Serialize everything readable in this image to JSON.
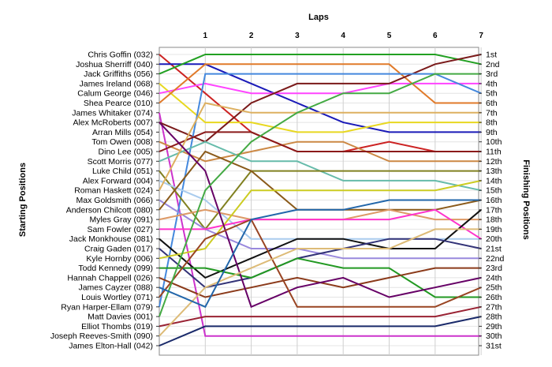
{
  "chart_data": {
    "type": "line",
    "title": "Laps",
    "ylabel_left": "Starting Positions",
    "ylabel_right": "Finishing Positions",
    "x": [
      0,
      1,
      2,
      3,
      4,
      5,
      6,
      7
    ],
    "x_tick_labels": [
      "1",
      "2",
      "3",
      "4",
      "5",
      "6",
      "7"
    ],
    "ylim": [
      1,
      31
    ],
    "y_inverted": true,
    "grid": true,
    "start_labels": [
      "Chris Goffin (032)",
      "Joshua Sherriff (040)",
      "Jack Griffiths (056)",
      "James Ireland (068)",
      "Calum George (046)",
      "Shea Pearce (010)",
      "James Whitaker (074)",
      "Alex McRoberts (007)",
      "Arran Mills (054)",
      "Tom Owen (008)",
      "Dino Lee (005)",
      "Scott Morris (077)",
      "Luke Child (051)",
      "Alex Forward (004)",
      "Roman Haskett (024)",
      "Max Goldsmith (066)",
      "Anderson Chilcott (080)",
      "Myles Gray (091)",
      "Sam Fowler (027)",
      "Jack Monkhouse (081)",
      "Craig Gaden (017)",
      "Kyle Hornby (006)",
      "Todd Kennedy (099)",
      "Hannah Chappell (026)",
      "James Cayzer (088)",
      "Louis Wortley (071)",
      "Ryan Harper-Ellam (079)",
      "Matt Davies (001)",
      "Elliot Thombs (019)",
      "Joseph Reeves-Smith (090)",
      "James Elton-Hall (042)"
    ],
    "finish_labels": [
      "1st",
      "2nd",
      "3rd",
      "4th",
      "5th",
      "6th",
      "7th",
      "8th",
      "9th",
      "10th",
      "11th",
      "12th",
      "13th",
      "14th",
      "15th",
      "16th",
      "17th",
      "18th",
      "19th",
      "20th",
      "21st",
      "22nd",
      "23rd",
      "24th",
      "25th",
      "26th",
      "27th",
      "28th",
      "29th",
      "30th",
      "31st"
    ],
    "series": [
      {
        "color": "#cc2222",
        "values": [
          1,
          5,
          9,
          11,
          11,
          10,
          11,
          11
        ]
      },
      {
        "color": "#1a1ab8",
        "values": [
          2,
          2,
          4,
          6,
          8,
          9,
          9,
          9
        ]
      },
      {
        "color": "#22a022",
        "values": [
          3,
          1,
          1,
          1,
          1,
          1,
          1,
          2
        ]
      },
      {
        "color": "#e8d820",
        "values": [
          4,
          8,
          8,
          9,
          9,
          8,
          8,
          8
        ]
      },
      {
        "color": "#ff44ff",
        "values": [
          5,
          4,
          5,
          5,
          5,
          4,
          4,
          4
        ]
      },
      {
        "color": "#e07a2a",
        "values": [
          6,
          2,
          2,
          2,
          2,
          2,
          6,
          6
        ]
      },
      {
        "color": "#cc33cc",
        "values": [
          7,
          30,
          30,
          30,
          30,
          30,
          30,
          30
        ]
      },
      {
        "color": "#7a1a1a",
        "values": [
          8,
          10,
          6,
          4,
          4,
          4,
          2,
          1
        ]
      },
      {
        "color": "#4488dd",
        "values": [
          27,
          3,
          3,
          3,
          3,
          3,
          3,
          5
        ]
      },
      {
        "color": "#cc8844",
        "values": [
          10,
          12,
          11,
          10,
          10,
          12,
          12,
          12
        ]
      },
      {
        "color": "#8b1a1a",
        "values": [
          11,
          9,
          9,
          11,
          11,
          11,
          11,
          11
        ]
      },
      {
        "color": "#66bbaa",
        "values": [
          12,
          10,
          12,
          12,
          14,
          14,
          14,
          15
        ]
      },
      {
        "color": "#808020",
        "values": [
          13,
          19,
          13,
          13,
          13,
          13,
          13,
          13
        ]
      },
      {
        "color": "#aaccee",
        "values": [
          14,
          16,
          20,
          20,
          20,
          20,
          20,
          20
        ]
      },
      {
        "color": "#ddb060",
        "values": [
          15,
          6,
          7,
          7,
          7,
          7,
          7,
          7
        ]
      },
      {
        "color": "#9988dd",
        "values": [
          16,
          19,
          21,
          21,
          22,
          22,
          22,
          22
        ]
      },
      {
        "color": "#8a5a1a",
        "values": [
          17,
          11,
          13,
          17,
          17,
          17,
          17,
          16
        ]
      },
      {
        "color": "#dd9966",
        "values": [
          18,
          17,
          18,
          18,
          18,
          17,
          18,
          18
        ]
      },
      {
        "color": "#ff33cc",
        "values": [
          19,
          19,
          18,
          18,
          18,
          18,
          17,
          20
        ]
      },
      {
        "color": "#111111",
        "values": [
          20,
          24,
          22,
          20,
          20,
          21,
          21,
          17
        ]
      },
      {
        "color": "#333377",
        "values": [
          21,
          25,
          24,
          22,
          21,
          20,
          20,
          21
        ]
      },
      {
        "color": "#cccc22",
        "values": [
          22,
          21,
          15,
          15,
          15,
          15,
          15,
          14
        ]
      },
      {
        "color": "#229922",
        "values": [
          23,
          23,
          24,
          22,
          23,
          23,
          26,
          26
        ]
      },
      {
        "color": "#8b3a1a",
        "values": [
          24,
          26,
          25,
          24,
          25,
          24,
          23,
          23
        ]
      },
      {
        "color": "#660066",
        "values": [
          8,
          13,
          27,
          25,
          24,
          26,
          25,
          24
        ]
      },
      {
        "color": "#994422",
        "values": [
          26,
          20,
          18,
          27,
          27,
          27,
          27,
          25
        ]
      },
      {
        "color": "#44aa44",
        "values": [
          28,
          15,
          10,
          7,
          5,
          5,
          3,
          3
        ]
      },
      {
        "color": "#1a2a6a",
        "values": [
          31,
          29,
          29,
          29,
          29,
          29,
          29,
          28
        ]
      },
      {
        "color": "#992233",
        "values": [
          29,
          28,
          28,
          28,
          28,
          28,
          28,
          27
        ]
      },
      {
        "color": "#ddbb77",
        "values": [
          30,
          25,
          23,
          21,
          21,
          21,
          19,
          19
        ]
      },
      {
        "color": "#2266aa",
        "values": [
          25,
          27,
          18,
          17,
          17,
          16,
          16,
          16
        ]
      }
    ]
  }
}
